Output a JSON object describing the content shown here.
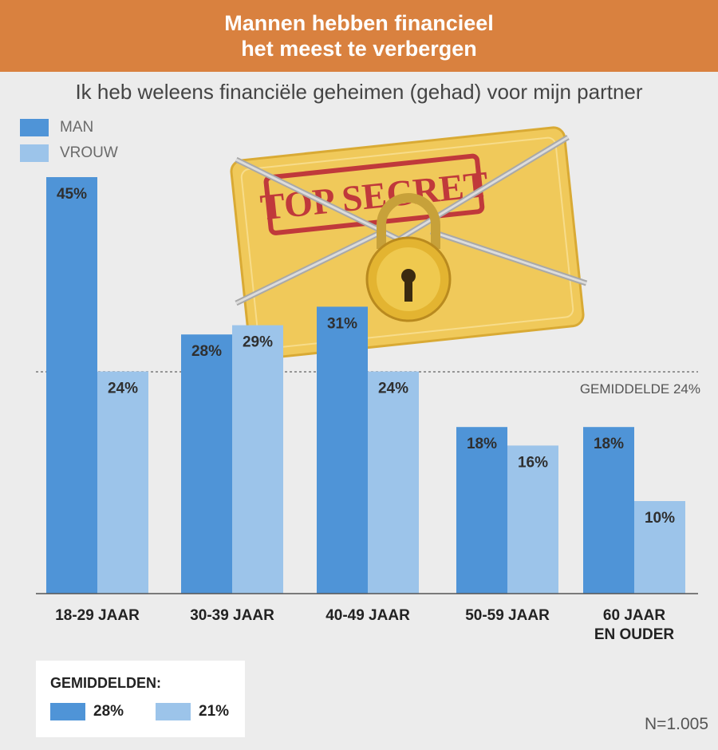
{
  "header": {
    "title_line1": "Mannen hebben financieel",
    "title_line2": "het meest te verbergen"
  },
  "subtitle": "Ik heb weleens financiële geheimen (gehad) voor mijn partner",
  "legend": [
    {
      "label": "MAN",
      "color": "#4f94d7"
    },
    {
      "label": "VROUW",
      "color": "#9cc4ea"
    }
  ],
  "illustration": {
    "stamp_text": "TOP SECRET"
  },
  "chart_data": {
    "type": "bar",
    "categories": [
      "18-29 JAAR",
      "30-39 JAAR",
      "40-49 JAAR",
      "50-59 JAAR",
      [
        "60 JAAR",
        "EN OUDER"
      ]
    ],
    "series": [
      {
        "name": "MAN",
        "values": [
          45,
          28,
          31,
          18,
          18
        ],
        "labels": [
          "45%",
          "28%",
          "31%",
          "18%",
          "18%"
        ],
        "color": "#4f94d7"
      },
      {
        "name": "VROUW",
        "values": [
          24,
          29,
          24,
          16,
          10
        ],
        "labels": [
          "24%",
          "29%",
          "24%",
          "16%",
          "10%"
        ],
        "color": "#9cc4ea"
      }
    ],
    "ylim": [
      0,
      45
    ],
    "reference_line": {
      "value": 24,
      "label": "GEMIDDELDE 24%"
    },
    "grid": false
  },
  "summary": {
    "title": "GEMIDDELDEN:",
    "items": [
      {
        "value": "28%",
        "color": "#4f94d7"
      },
      {
        "value": "21%",
        "color": "#9cc4ea"
      }
    ]
  },
  "sample_size": "N=1.005"
}
